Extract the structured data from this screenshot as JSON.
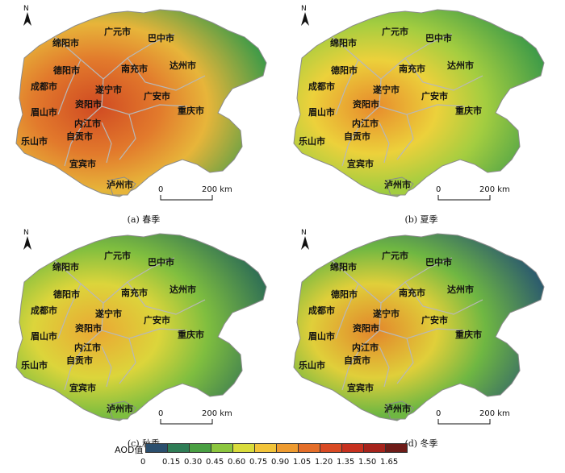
{
  "north_label": "N",
  "scale": {
    "zero": "0",
    "dist": "200 km"
  },
  "legend": {
    "title": "AOD值",
    "ticks": [
      "0",
      "0.15",
      "0.30",
      "0.45",
      "0.60",
      "0.75",
      "0.90",
      "1.05",
      "1.20",
      "1.35",
      "1.50",
      "1.65"
    ],
    "colors": [
      "#2b4f6e",
      "#2f7d56",
      "#4aa043",
      "#8cc63f",
      "#d9dc3c",
      "#f2c43a",
      "#ee9b30",
      "#e46e29",
      "#d94a24",
      "#c7311f",
      "#a6241c",
      "#6e1c18"
    ]
  },
  "cities": [
    "广元市",
    "巴中市",
    "绵阳市",
    "德阳市",
    "南充市",
    "达州市",
    "成都市",
    "遂宁市",
    "广安市",
    "眉山市",
    "资阳市",
    "重庆市",
    "内江市",
    "乐山市",
    "自贡市",
    "宜宾市",
    "泸州市"
  ],
  "panels": [
    {
      "caption": "(a)  春季",
      "palette": [
        "#3d9a48",
        "#e7b53a",
        "#e27a2c",
        "#d04a22"
      ]
    },
    {
      "caption": "(b)  夏季",
      "palette": [
        "#3d9a48",
        "#a3cd40",
        "#ecd13b",
        "#e78a2c"
      ]
    },
    {
      "caption": "(c)  秋季",
      "palette": [
        "#2f6f55",
        "#7fbe3f",
        "#dcd53b",
        "#eaa733"
      ]
    },
    {
      "caption": "(d)  冬季",
      "palette": [
        "#2b5a6e",
        "#6fb742",
        "#e0cf3a",
        "#e2852b"
      ]
    }
  ]
}
